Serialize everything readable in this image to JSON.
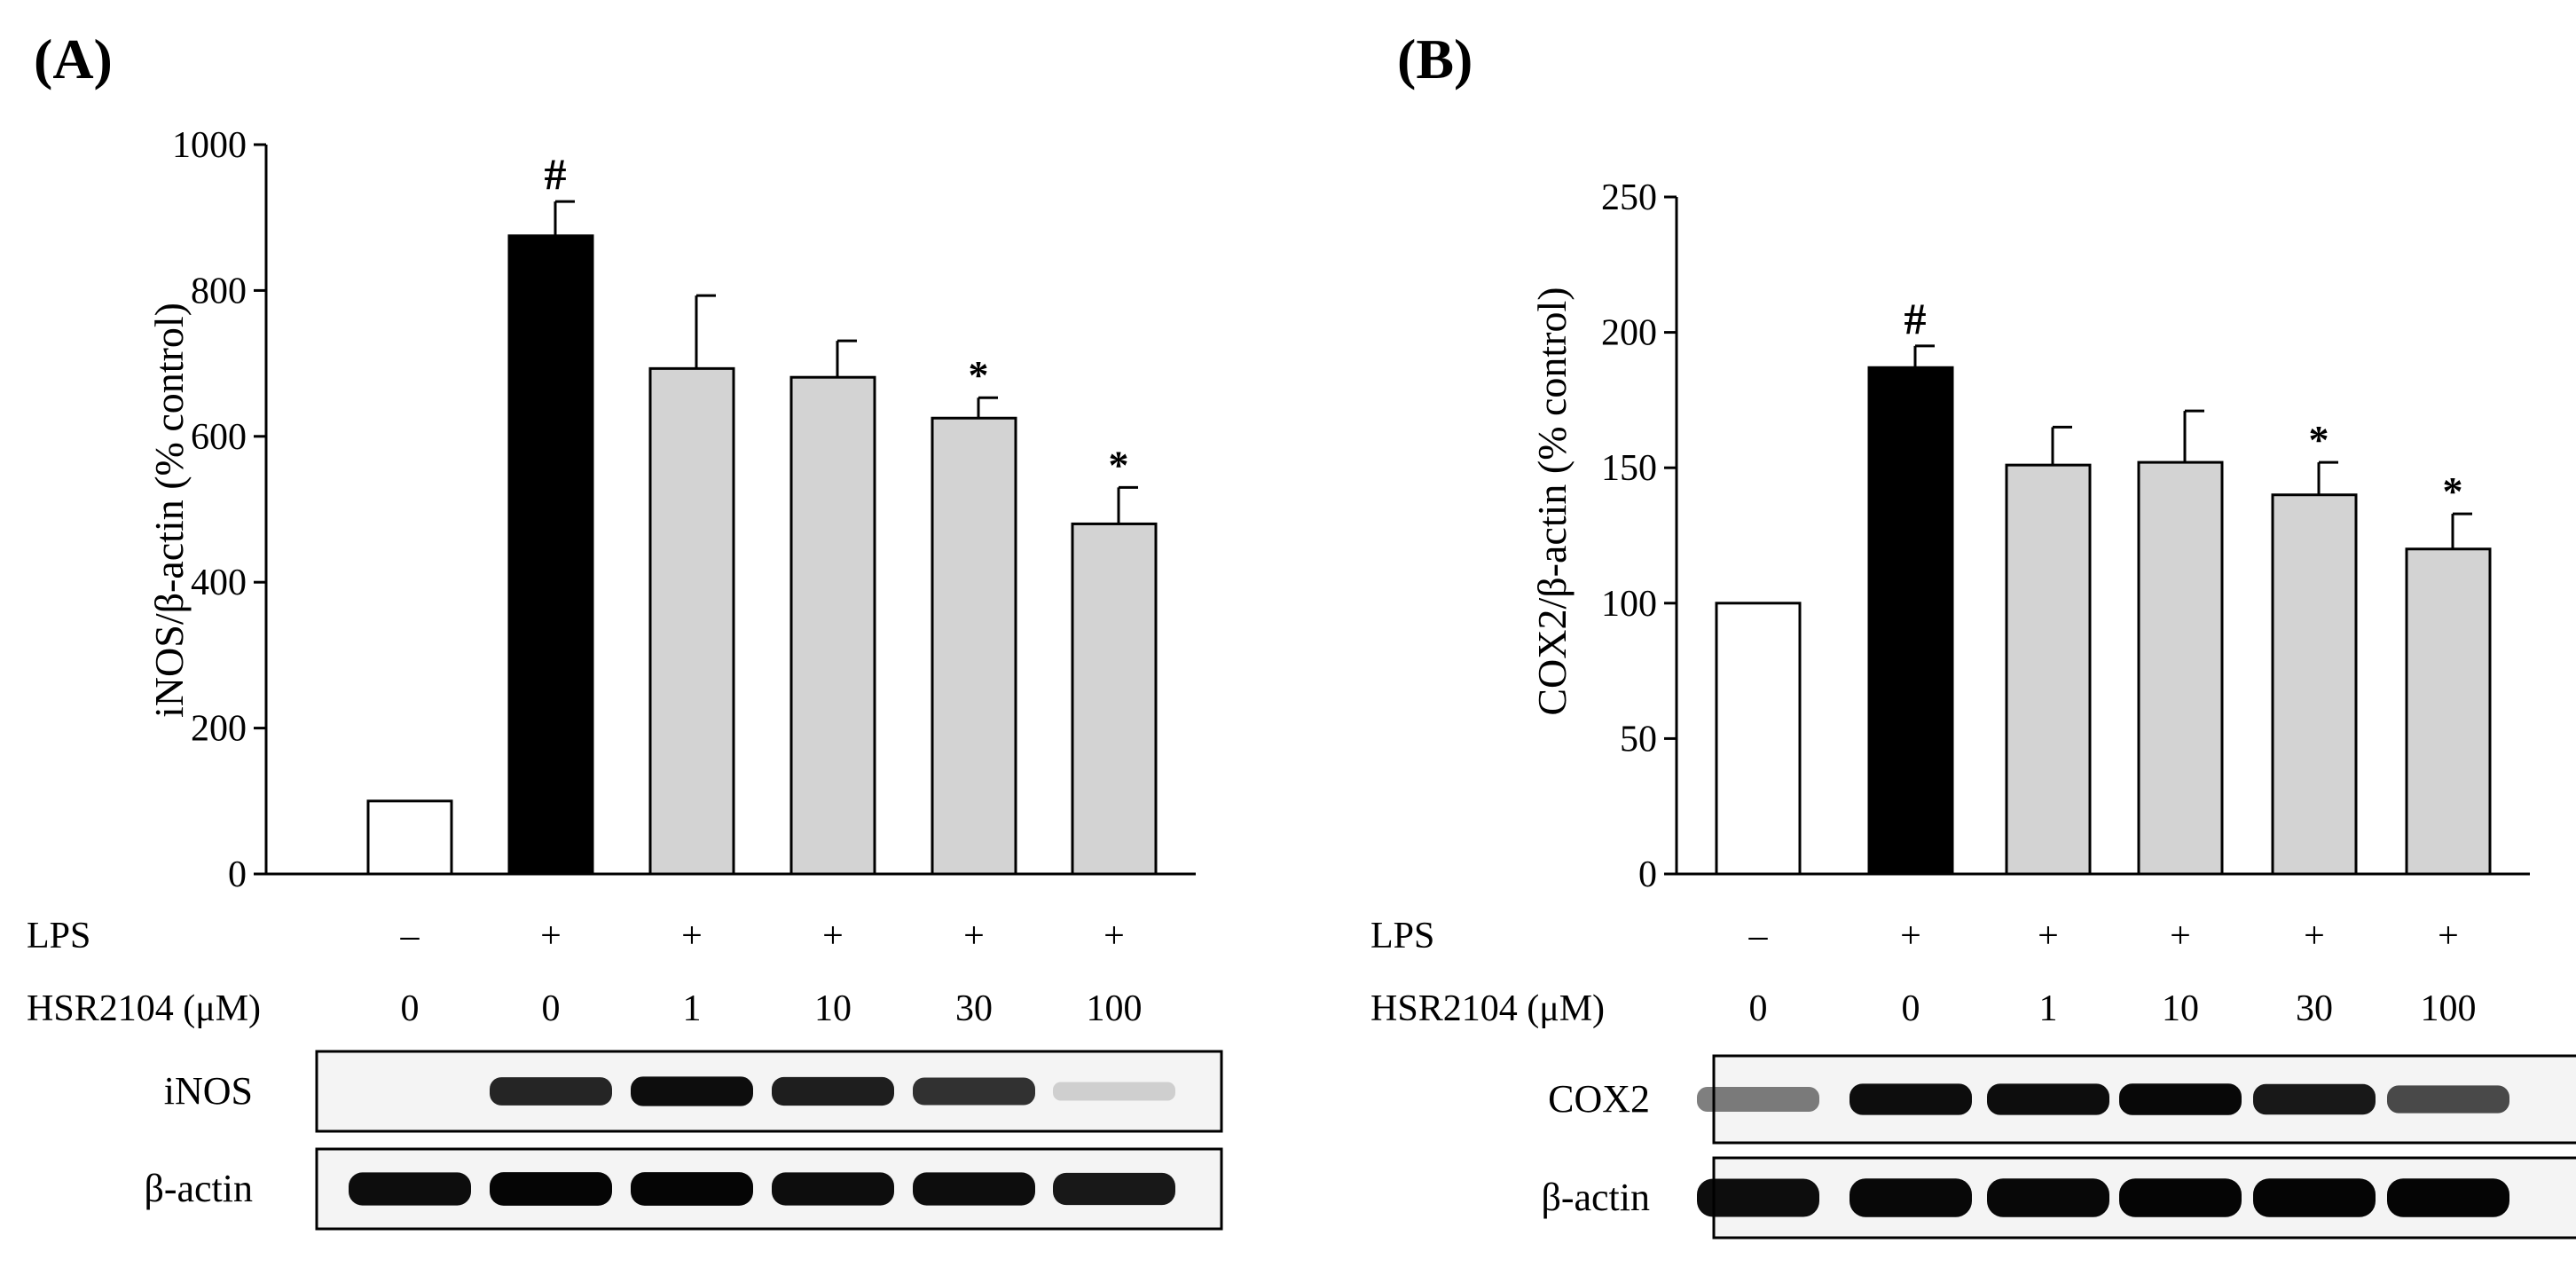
{
  "panels": [
    {
      "label": "(A)",
      "ylabel": "iNOS/β-actin (% control)",
      "yticks": [
        0,
        200,
        400,
        600,
        800,
        1000
      ],
      "conditions": {
        "lps_label": "LPS",
        "lps": [
          "–",
          "+",
          "+",
          "+",
          "+",
          "+"
        ],
        "dose_label": "HSR2104 (μM)",
        "doses": [
          "0",
          "0",
          "1",
          "10",
          "30",
          "100"
        ]
      },
      "blots": [
        {
          "label": "iNOS",
          "intensity": [
            0.0,
            0.85,
            0.95,
            0.88,
            0.8,
            0.15
          ]
        },
        {
          "label": "β-actin",
          "intensity": [
            0.95,
            0.98,
            0.98,
            0.95,
            0.95,
            0.9
          ]
        }
      ]
    },
    {
      "label": "(B)",
      "ylabel": "COX2/β-actin (% control)",
      "yticks": [
        0,
        50,
        100,
        150,
        200,
        250
      ],
      "conditions": {
        "lps_label": "LPS",
        "lps": [
          "–",
          "+",
          "+",
          "+",
          "+",
          "+"
        ],
        "dose_label": "HSR2104 (μM)",
        "doses": [
          "0",
          "0",
          "1",
          "10",
          "30",
          "100"
        ]
      },
      "blots": [
        {
          "label": "COX2",
          "intensity": [
            0.5,
            0.95,
            0.95,
            0.97,
            0.9,
            0.7
          ]
        },
        {
          "label": "β-actin",
          "intensity": [
            0.95,
            0.97,
            0.97,
            0.98,
            0.98,
            0.98
          ]
        }
      ]
    }
  ],
  "colors": {
    "control": "#ffffff",
    "lps": "#000000",
    "treated": "#d3d3d3",
    "axis": "#000000"
  },
  "chart_data": [
    {
      "type": "bar",
      "title": "(A)",
      "xlabel": "",
      "ylabel": "iNOS/β-actin (% control)",
      "ylim": [
        0,
        1000
      ],
      "categories": [
        "LPS – / 0",
        "LPS + / 0",
        "LPS + / 1",
        "LPS + / 10",
        "LPS + / 30",
        "LPS + / 100"
      ],
      "values": [
        100,
        875,
        693,
        681,
        625,
        480
      ],
      "errors": [
        0,
        47,
        100,
        50,
        28,
        50
      ],
      "markers": [
        "",
        "#",
        "",
        "",
        "*",
        "*"
      ],
      "fills": [
        "control",
        "lps",
        "treated",
        "treated",
        "treated",
        "treated"
      ]
    },
    {
      "type": "bar",
      "title": "(B)",
      "xlabel": "",
      "ylabel": "COX2/β-actin (% control)",
      "ylim": [
        0,
        250
      ],
      "categories": [
        "LPS – / 0",
        "LPS + / 0",
        "LPS + / 1",
        "LPS + / 10",
        "LPS + / 30",
        "LPS + / 100"
      ],
      "values": [
        100,
        187,
        151,
        152,
        140,
        120
      ],
      "errors": [
        0,
        8,
        14,
        19,
        12,
        13
      ],
      "markers": [
        "",
        "#",
        "",
        "",
        "*",
        "*"
      ],
      "fills": [
        "control",
        "lps",
        "treated",
        "treated",
        "treated",
        "treated"
      ]
    }
  ]
}
